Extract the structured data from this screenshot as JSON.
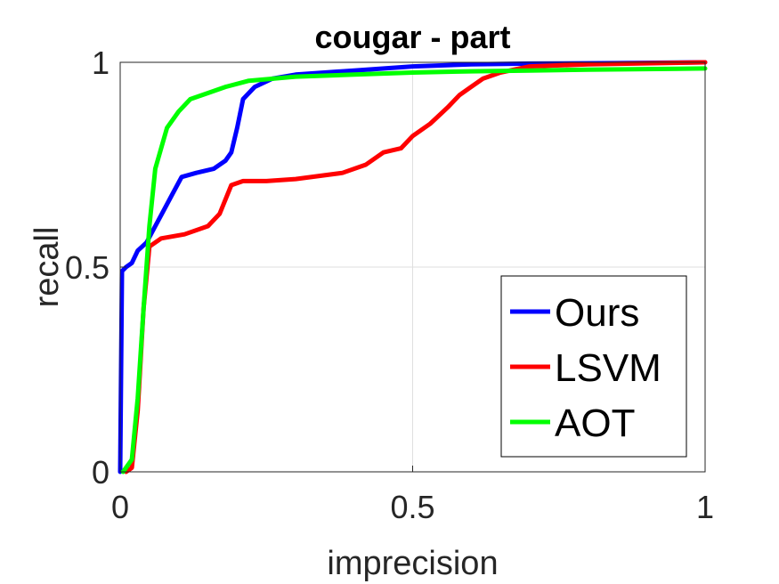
{
  "chart_data": {
    "type": "line",
    "title": "cougar - part",
    "xlabel": "imprecision",
    "ylabel": "recall",
    "xlim": [
      0,
      1
    ],
    "ylim": [
      0,
      1
    ],
    "xticks": [
      0,
      0.5,
      1
    ],
    "yticks": [
      0,
      0.5,
      1
    ],
    "xtick_labels": [
      "0",
      "0.5",
      "1"
    ],
    "ytick_labels": [
      "0",
      "0.5",
      "1"
    ],
    "grid": true,
    "legend_position": "bottom-right",
    "series": [
      {
        "name": "Ours",
        "color": "#0000ff",
        "points": [
          [
            0,
            0
          ],
          [
            0.003,
            0.49
          ],
          [
            0.01,
            0.5
          ],
          [
            0.02,
            0.51
          ],
          [
            0.03,
            0.54
          ],
          [
            0.045,
            0.56
          ],
          [
            0.06,
            0.6
          ],
          [
            0.075,
            0.64
          ],
          [
            0.09,
            0.68
          ],
          [
            0.105,
            0.72
          ],
          [
            0.13,
            0.73
          ],
          [
            0.16,
            0.74
          ],
          [
            0.18,
            0.76
          ],
          [
            0.19,
            0.78
          ],
          [
            0.2,
            0.84
          ],
          [
            0.21,
            0.91
          ],
          [
            0.23,
            0.94
          ],
          [
            0.26,
            0.96
          ],
          [
            0.3,
            0.97
          ],
          [
            0.4,
            0.98
          ],
          [
            0.5,
            0.99
          ],
          [
            0.6,
            0.995
          ],
          [
            0.7,
            0.997
          ],
          [
            0.85,
            0.998
          ],
          [
            1.0,
            1.0
          ]
        ]
      },
      {
        "name": "LSVM",
        "color": "#ff0000",
        "points": [
          [
            0.01,
            0.0
          ],
          [
            0.02,
            0.01
          ],
          [
            0.03,
            0.15
          ],
          [
            0.04,
            0.4
          ],
          [
            0.05,
            0.55
          ],
          [
            0.07,
            0.57
          ],
          [
            0.11,
            0.58
          ],
          [
            0.15,
            0.6
          ],
          [
            0.17,
            0.63
          ],
          [
            0.19,
            0.7
          ],
          [
            0.21,
            0.71
          ],
          [
            0.25,
            0.71
          ],
          [
            0.3,
            0.715
          ],
          [
            0.38,
            0.73
          ],
          [
            0.42,
            0.75
          ],
          [
            0.45,
            0.78
          ],
          [
            0.48,
            0.79
          ],
          [
            0.5,
            0.82
          ],
          [
            0.53,
            0.85
          ],
          [
            0.56,
            0.89
          ],
          [
            0.58,
            0.92
          ],
          [
            0.6,
            0.94
          ],
          [
            0.62,
            0.96
          ],
          [
            0.65,
            0.975
          ],
          [
            0.7,
            0.99
          ],
          [
            0.8,
            0.995
          ],
          [
            1.0,
            1.0
          ]
        ]
      },
      {
        "name": "AOT",
        "color": "#00ff00",
        "points": [
          [
            0.005,
            0.0
          ],
          [
            0.02,
            0.03
          ],
          [
            0.03,
            0.18
          ],
          [
            0.04,
            0.4
          ],
          [
            0.05,
            0.6
          ],
          [
            0.06,
            0.74
          ],
          [
            0.07,
            0.79
          ],
          [
            0.08,
            0.84
          ],
          [
            0.1,
            0.88
          ],
          [
            0.12,
            0.91
          ],
          [
            0.15,
            0.925
          ],
          [
            0.18,
            0.94
          ],
          [
            0.22,
            0.955
          ],
          [
            0.3,
            0.965
          ],
          [
            0.4,
            0.97
          ],
          [
            0.5,
            0.975
          ],
          [
            0.6,
            0.978
          ],
          [
            0.7,
            0.98
          ],
          [
            0.8,
            0.982
          ],
          [
            1.0,
            0.985
          ]
        ]
      }
    ]
  }
}
